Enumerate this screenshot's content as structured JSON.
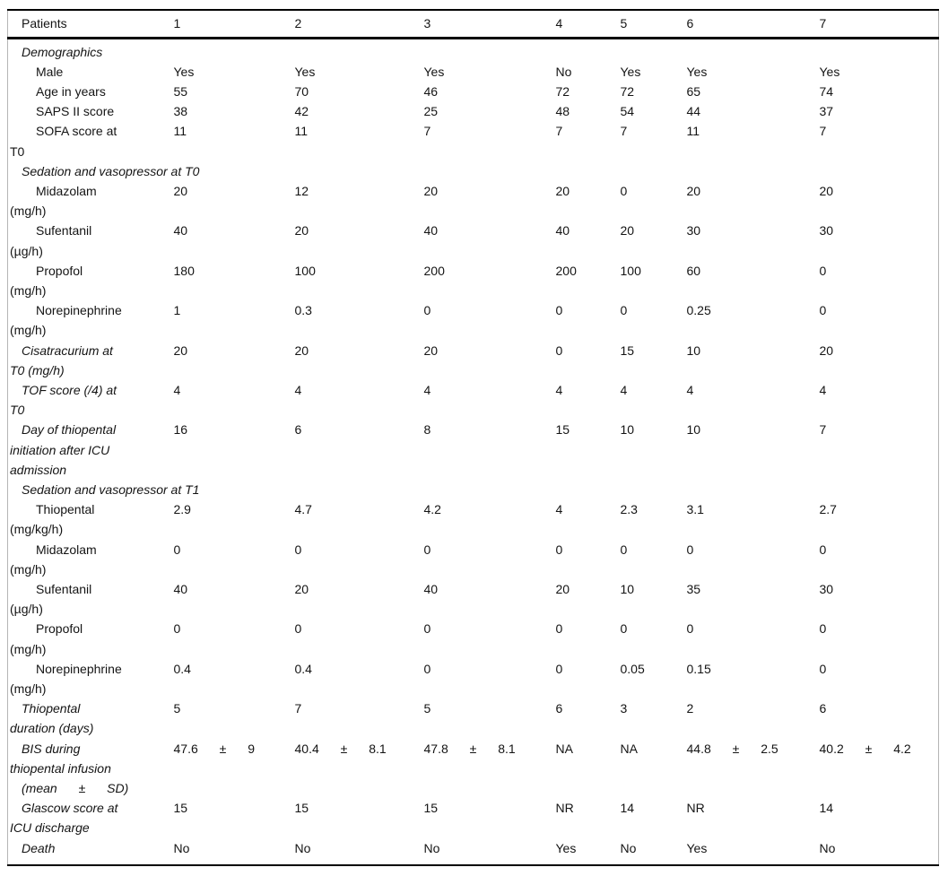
{
  "table": {
    "header": {
      "label": "Patients",
      "columns": [
        "1",
        "2",
        "3",
        "4",
        "5",
        "6",
        "7"
      ]
    },
    "rows": [
      {
        "type": "section",
        "wide": true,
        "label": "Demographics",
        "values": [
          "",
          "",
          "",
          "",
          "",
          "",
          ""
        ]
      },
      {
        "type": "item",
        "label": "Male",
        "values": [
          "Yes",
          "Yes",
          "Yes",
          "No",
          "Yes",
          "Yes",
          "Yes"
        ]
      },
      {
        "type": "item",
        "label": "Age in years",
        "values": [
          "55",
          "70",
          "46",
          "72",
          "72",
          "65",
          "74"
        ]
      },
      {
        "type": "item",
        "label": "SAPS II score",
        "values": [
          "38",
          "42",
          "25",
          "48",
          "54",
          "44",
          "37"
        ]
      },
      {
        "type": "item",
        "label": "SOFA score at\nT0",
        "values": [
          "11",
          "11",
          "7",
          "7",
          "7",
          "11",
          "7"
        ]
      },
      {
        "type": "section",
        "wide": true,
        "label": "Sedation and vasopressor at T0",
        "values": [
          "",
          "",
          "",
          "",
          "",
          "",
          ""
        ]
      },
      {
        "type": "item",
        "label": "Midazolam\n(mg/h)",
        "values": [
          "20",
          "12",
          "20",
          "20",
          "0",
          "20",
          "20"
        ]
      },
      {
        "type": "item",
        "label": "Sufentanil\n(µg/h)",
        "values": [
          "40",
          "20",
          "40",
          "40",
          "20",
          "30",
          "30"
        ]
      },
      {
        "type": "item",
        "label": "Propofol\n(mg/h)",
        "values": [
          "180",
          "100",
          "200",
          "200",
          "100",
          "60",
          "0"
        ]
      },
      {
        "type": "item",
        "label": "Norepinephrine\n(mg/h)",
        "values": [
          "1",
          "0.3",
          "0",
          "0",
          "0",
          "0.25",
          "0"
        ]
      },
      {
        "type": "section",
        "label": "Cisatracurium at\nT0 (mg/h)",
        "values": [
          "20",
          "20",
          "20",
          "0",
          "15",
          "10",
          "20"
        ]
      },
      {
        "type": "section",
        "label": "TOF score (/4) at\nT0",
        "values": [
          "4",
          "4",
          "4",
          "4",
          "4",
          "4",
          "4"
        ]
      },
      {
        "type": "section",
        "label": "Day of thiopental\ninitiation after ICU\nadmission",
        "values": [
          "16",
          "6",
          "8",
          "15",
          "10",
          "10",
          "7"
        ]
      },
      {
        "type": "section",
        "wide": true,
        "label": "Sedation and vasopressor at T1",
        "values": [
          "",
          "",
          "",
          "",
          "",
          "",
          ""
        ]
      },
      {
        "type": "item",
        "label": "Thiopental\n(mg/kg/h)",
        "values": [
          "2.9",
          "4.7",
          "4.2",
          "4",
          "2.3",
          "3.1",
          "2.7"
        ]
      },
      {
        "type": "item",
        "label": "Midazolam\n(mg/h)",
        "values": [
          "0",
          "0",
          "0",
          "0",
          "0",
          "0",
          "0"
        ]
      },
      {
        "type": "item",
        "label": "Sufentanil\n(µg/h)",
        "values": [
          "40",
          "20",
          "40",
          "20",
          "10",
          "35",
          "30"
        ]
      },
      {
        "type": "item",
        "label": "Propofol\n(mg/h)",
        "values": [
          "0",
          "0",
          "0",
          "0",
          "0",
          "0",
          "0"
        ]
      },
      {
        "type": "item",
        "label": "Norepinephrine\n(mg/h)",
        "values": [
          "0.4",
          "0.4",
          "0",
          "0",
          "0.05",
          "0.15",
          "0"
        ]
      },
      {
        "type": "section",
        "label": "Thiopental\nduration (days)",
        "values": [
          "5",
          "7",
          "5",
          "6",
          "3",
          "2",
          "6"
        ]
      },
      {
        "type": "section",
        "label": "BIS during\nthiopental infusion",
        "label2": "(mean ± SD)",
        "spread": true,
        "values": [
          "47.6 ± 9",
          "40.4 ± 8.1",
          "47.8 ± 8.1",
          "NA",
          "NA",
          "44.8 ± 2.5",
          "40.2 ± 4.2"
        ]
      },
      {
        "type": "section",
        "label": "Glascow score at\nICU discharge",
        "values": [
          "15",
          "15",
          "15",
          "NR",
          "14",
          "NR",
          "14"
        ]
      },
      {
        "type": "section",
        "label": "Death",
        "values": [
          "No",
          "No",
          "No",
          "Yes",
          "No",
          "Yes",
          "No"
        ]
      }
    ]
  }
}
